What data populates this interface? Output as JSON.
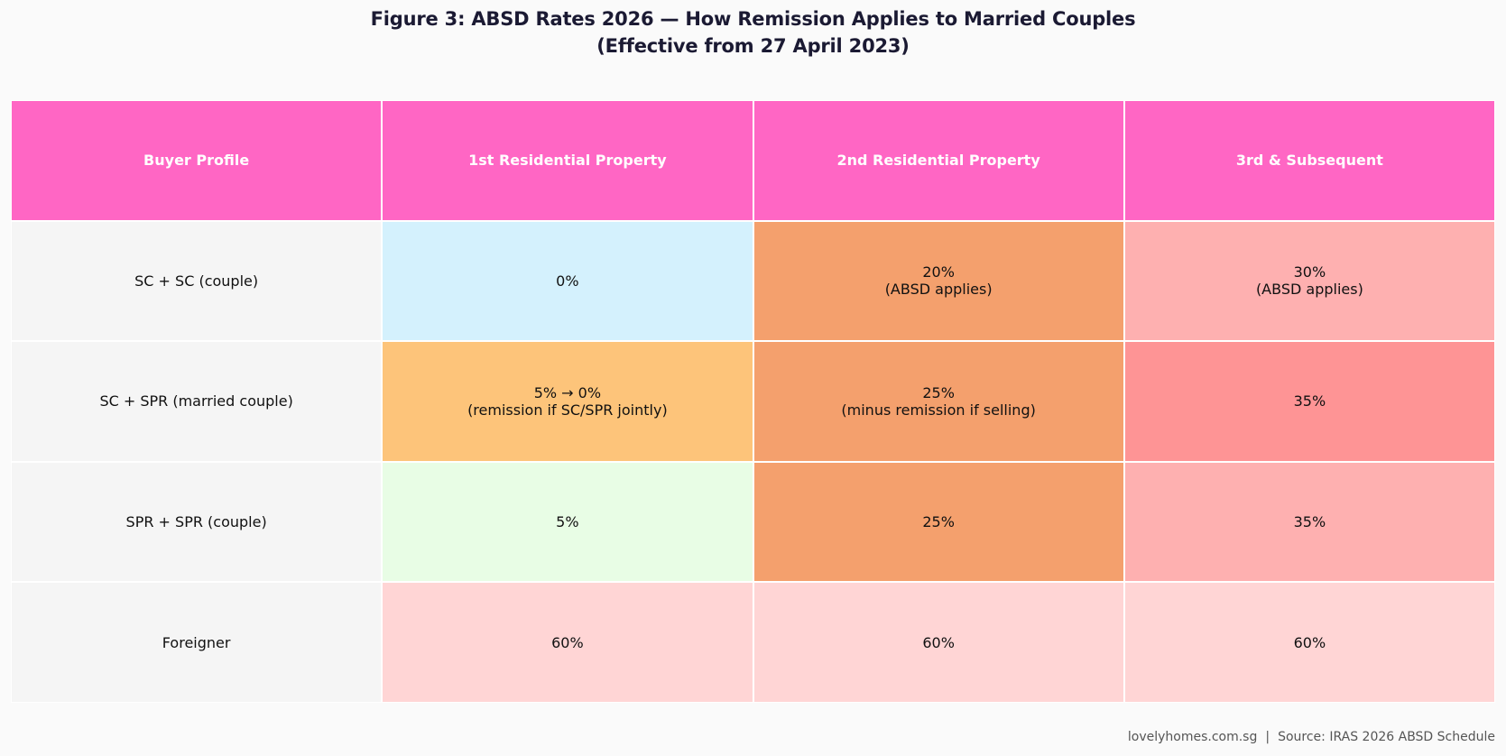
{
  "title": {
    "line1": "Figure 3: ABSD Rates 2026 — How Remission Applies to Married Couples",
    "line2": "(Effective from 27 April 2023)"
  },
  "chart_data": {
    "type": "table",
    "columns": [
      "Buyer Profile",
      "1st Residential Property",
      "2nd Residential Property",
      "3rd & Subsequent"
    ],
    "rows": [
      {
        "profile": "SC + SC (couple)",
        "cells": [
          {
            "text": "0%",
            "color": "#d4f1fd"
          },
          {
            "text": "20%\n(ABSD applies)",
            "color": "#f4a06d"
          },
          {
            "text": "30%\n(ABSD applies)",
            "color": "#feb0b0"
          }
        ]
      },
      {
        "profile": "SC + SPR (married couple)",
        "cells": [
          {
            "text": "5% → 0%\n(remission if SC/SPR jointly)",
            "color": "#fdc47a"
          },
          {
            "text": "25%\n(minus remission if selling)",
            "color": "#f4a06d"
          },
          {
            "text": "35%",
            "color": "#fe9495"
          }
        ]
      },
      {
        "profile": "SPR + SPR (couple)",
        "cells": [
          {
            "text": "5%",
            "color": "#e8fde5"
          },
          {
            "text": "25%",
            "color": "#f4a06d"
          },
          {
            "text": "35%",
            "color": "#feb0b0"
          }
        ]
      },
      {
        "profile": "Foreigner",
        "cells": [
          {
            "text": "60%",
            "color": "#ffd5d5"
          },
          {
            "text": "60%",
            "color": "#ffd5d5"
          },
          {
            "text": "60%",
            "color": "#ffd5d5"
          }
        ]
      }
    ],
    "header_color": "#ff66c4",
    "profile_color": "#f5f5f5"
  },
  "footer": {
    "site": "lovelyhomes.com.sg",
    "separator": "|",
    "source": "Source: IRAS 2026 ABSD Schedule"
  }
}
